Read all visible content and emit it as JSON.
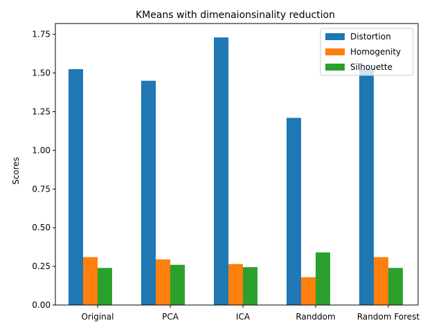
{
  "chart_data": {
    "type": "bar",
    "title": "KMeans with dimenaionsinality reduction",
    "xlabel": "",
    "ylabel": "Scores",
    "categories": [
      "Original",
      "PCA",
      "ICA",
      "Randdom",
      "Random Forest"
    ],
    "series": [
      {
        "name": "Distortion",
        "color": "#1f77b4",
        "values": [
          1.525,
          1.45,
          1.73,
          1.21,
          1.525
        ]
      },
      {
        "name": "Homogenity",
        "color": "#ff7f0e",
        "values": [
          0.31,
          0.295,
          0.265,
          0.18,
          0.31
        ]
      },
      {
        "name": "Silhouette",
        "color": "#2ca02c",
        "values": [
          0.24,
          0.26,
          0.245,
          0.34,
          0.24
        ]
      }
    ],
    "ylim": [
      0,
      1.82
    ],
    "yticks": [
      0.0,
      0.25,
      0.5,
      0.75,
      1.0,
      1.25,
      1.5,
      1.75
    ],
    "ytick_labels": [
      "0.00",
      "0.25",
      "0.50",
      "0.75",
      "1.00",
      "1.25",
      "1.50",
      "1.75"
    ],
    "grid": false,
    "legend_position": "top-right"
  }
}
